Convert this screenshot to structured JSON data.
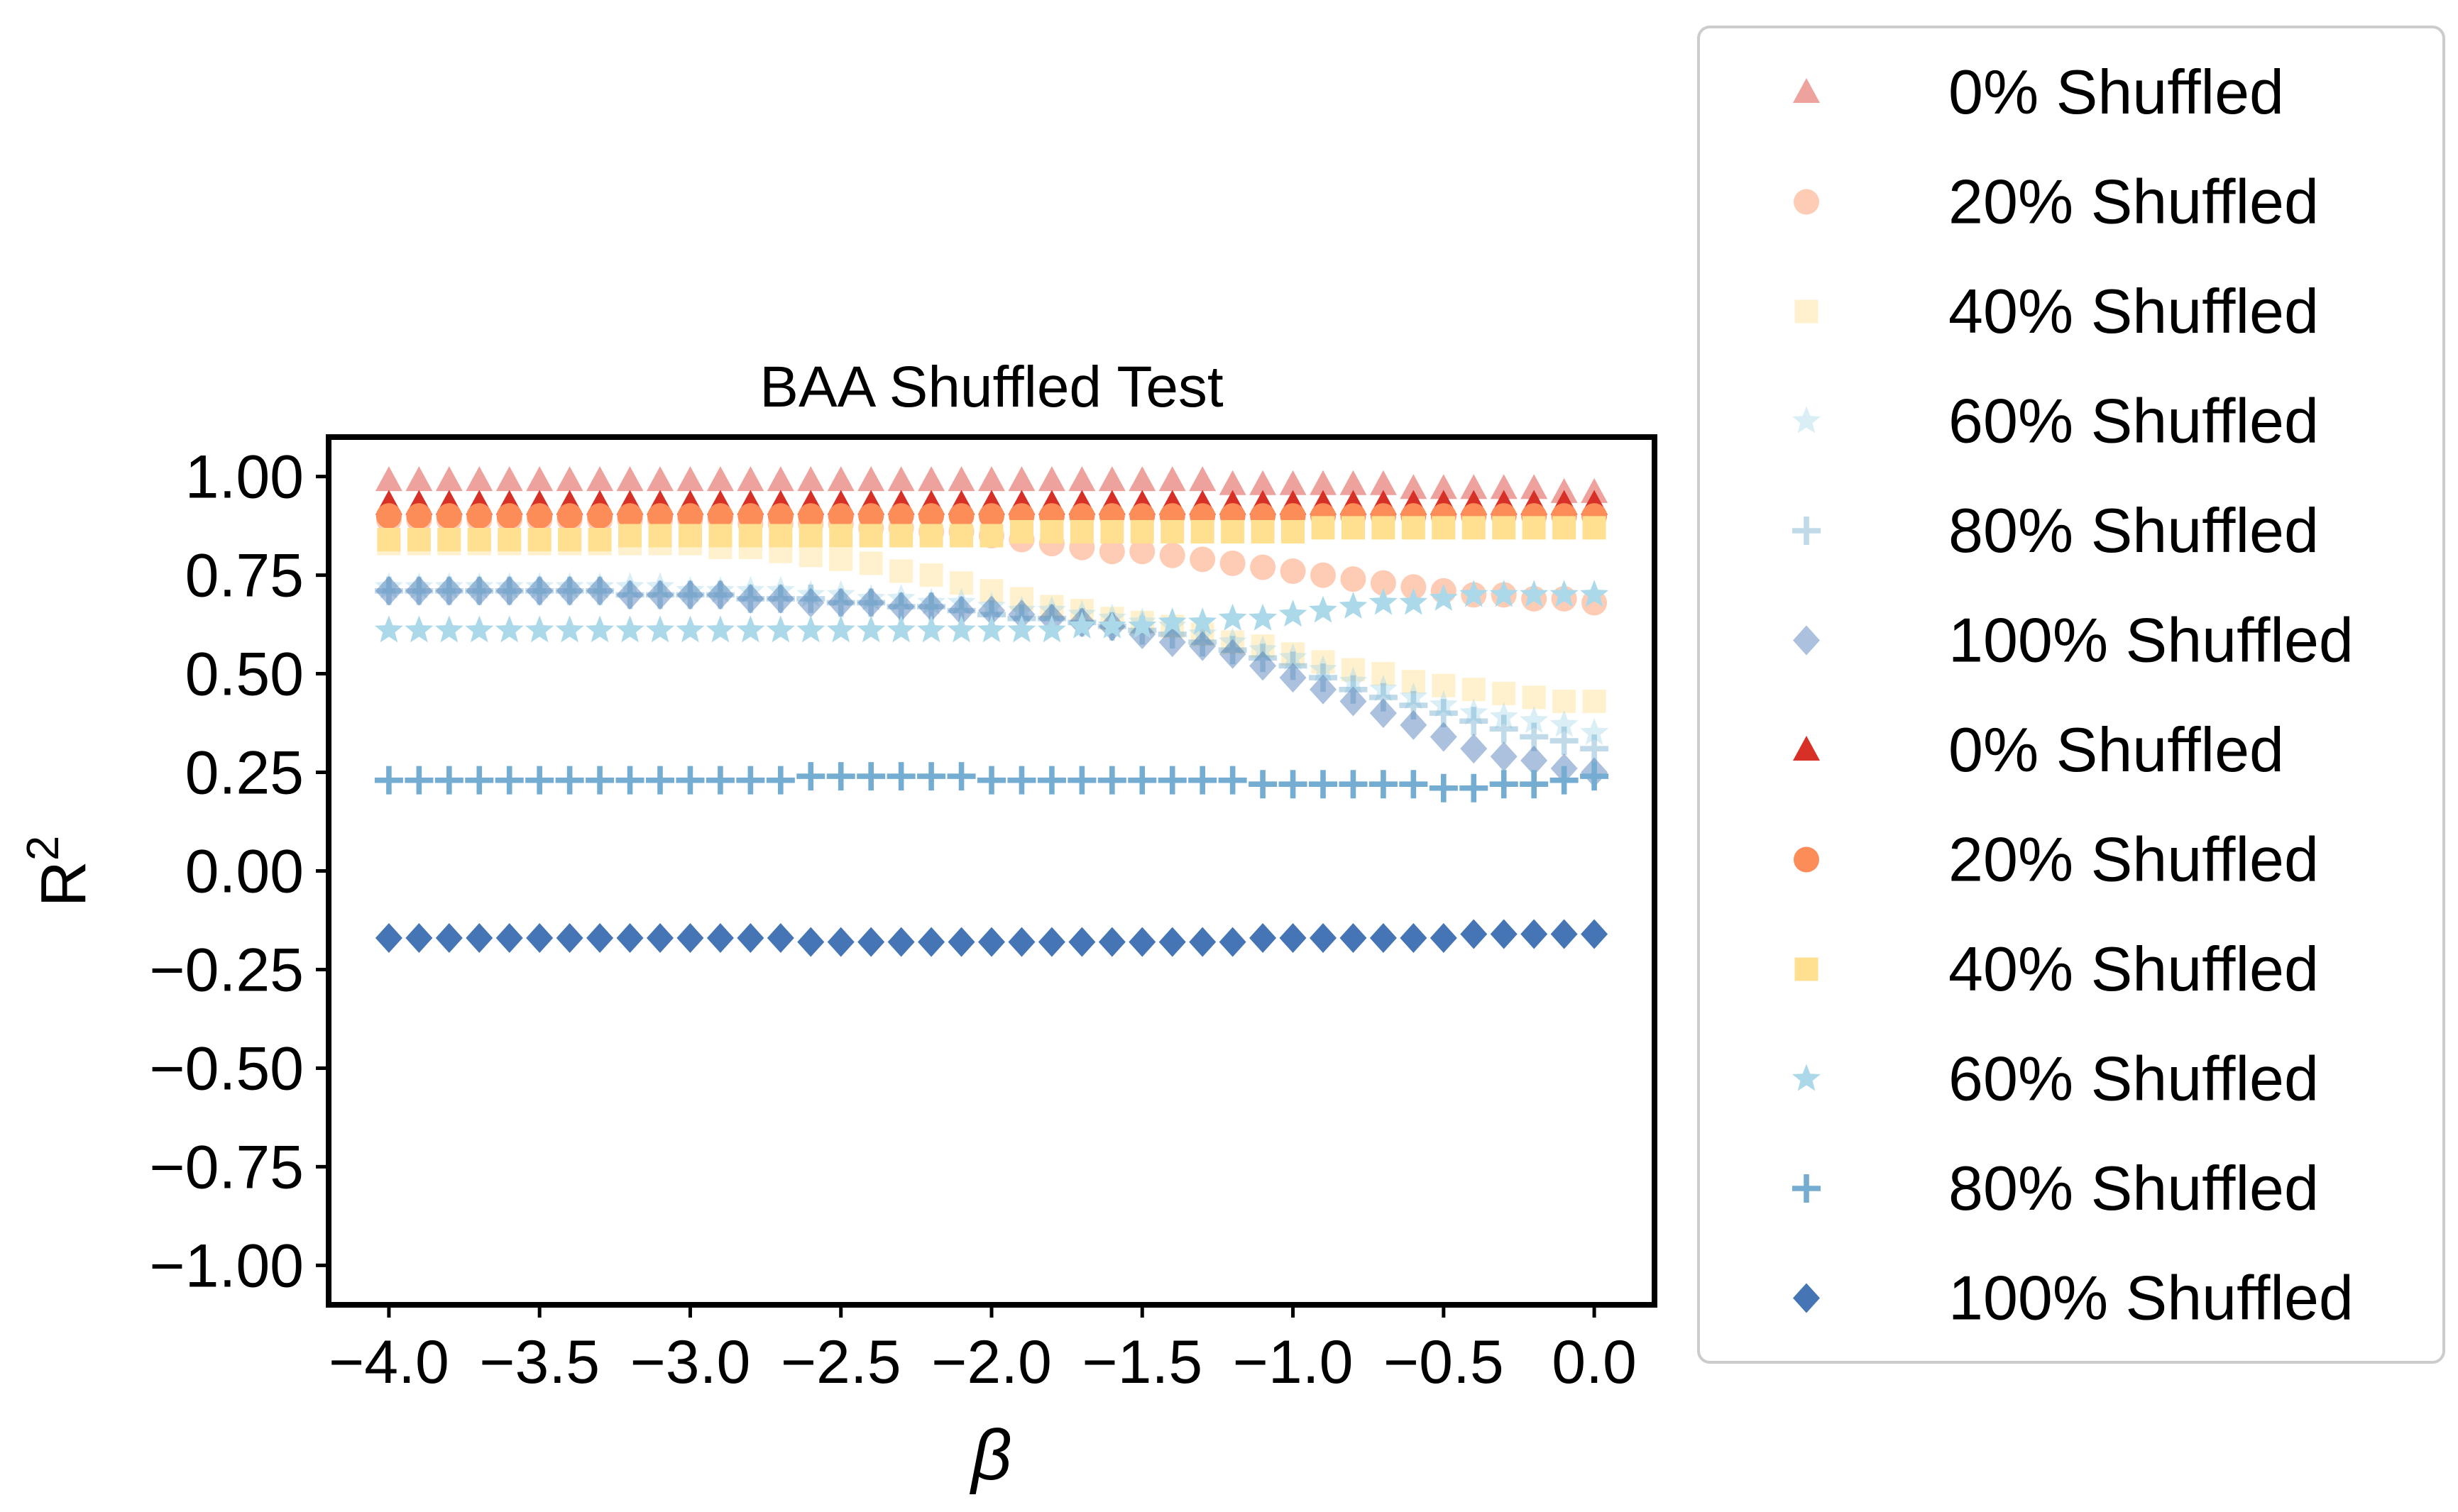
{
  "chart_data": {
    "type": "scatter",
    "title": "BAA Shuffled Test",
    "xlabel": "β",
    "ylabel_base": "R",
    "ylabel_sup": "2",
    "xlim": [
      -4.2,
      0.2
    ],
    "ylim": [
      -1.1,
      1.1
    ],
    "xticks": [
      -4.0,
      -3.5,
      -3.0,
      -2.5,
      -2.0,
      -1.5,
      -1.0,
      -0.5,
      0.0
    ],
    "xtick_labels": [
      "−4.0",
      "−3.5",
      "−3.0",
      "−2.5",
      "−2.0",
      "−1.5",
      "−1.0",
      "−0.5",
      "0.0"
    ],
    "yticks": [
      1.0,
      0.75,
      0.5,
      0.25,
      0.0,
      -0.25,
      -0.5,
      -0.75,
      -1.0
    ],
    "ytick_labels": [
      "1.00",
      "0.75",
      "0.50",
      "0.25",
      "0.00",
      "−0.25",
      "−0.50",
      "−0.75",
      "−1.00"
    ],
    "grid": false,
    "legend_position": "outside-right",
    "x": [
      -4.0,
      -3.9,
      -3.8,
      -3.7,
      -3.6,
      -3.5,
      -3.4,
      -3.3,
      -3.2,
      -3.1,
      -3.0,
      -2.9,
      -2.8,
      -2.7,
      -2.6,
      -2.5,
      -2.4,
      -2.3,
      -2.2,
      -2.1,
      -2.0,
      -1.9,
      -1.8,
      -1.7,
      -1.6,
      -1.5,
      -1.4,
      -1.3,
      -1.2,
      -1.1,
      -1.0,
      -0.9,
      -0.8,
      -0.7,
      -0.6,
      -0.5,
      -0.4,
      -0.3,
      -0.2,
      -0.1,
      0.0
    ],
    "series": [
      {
        "name": "0% Shuffled",
        "marker": "triangle",
        "color": "#d73027",
        "opacity": 0.45,
        "values": [
          0.99,
          0.99,
          0.99,
          0.99,
          0.99,
          0.99,
          0.99,
          0.99,
          0.99,
          0.99,
          0.99,
          0.99,
          0.99,
          0.99,
          0.99,
          0.99,
          0.99,
          0.99,
          0.99,
          0.99,
          0.99,
          0.99,
          0.99,
          0.99,
          0.99,
          0.99,
          0.99,
          0.99,
          0.98,
          0.98,
          0.98,
          0.98,
          0.98,
          0.98,
          0.97,
          0.97,
          0.97,
          0.97,
          0.97,
          0.96,
          0.96
        ]
      },
      {
        "name": "20% Shuffled",
        "marker": "circle",
        "color": "#fc8d59",
        "opacity": 0.45,
        "values": [
          0.89,
          0.89,
          0.89,
          0.89,
          0.89,
          0.89,
          0.89,
          0.89,
          0.89,
          0.89,
          0.89,
          0.89,
          0.88,
          0.88,
          0.88,
          0.88,
          0.87,
          0.87,
          0.86,
          0.86,
          0.85,
          0.84,
          0.83,
          0.82,
          0.81,
          0.81,
          0.8,
          0.79,
          0.78,
          0.77,
          0.76,
          0.75,
          0.74,
          0.73,
          0.72,
          0.71,
          0.7,
          0.7,
          0.69,
          0.69,
          0.68
        ]
      },
      {
        "name": "40% Shuffled",
        "marker": "square",
        "color": "#fee090",
        "opacity": 0.45,
        "values": [
          0.83,
          0.83,
          0.83,
          0.83,
          0.83,
          0.83,
          0.83,
          0.83,
          0.83,
          0.83,
          0.83,
          0.82,
          0.82,
          0.81,
          0.8,
          0.79,
          0.78,
          0.76,
          0.75,
          0.73,
          0.71,
          0.69,
          0.67,
          0.66,
          0.64,
          0.63,
          0.62,
          0.6,
          0.58,
          0.57,
          0.55,
          0.53,
          0.51,
          0.5,
          0.48,
          0.47,
          0.46,
          0.45,
          0.44,
          0.43,
          0.43
        ]
      },
      {
        "name": "60% Shuffled",
        "marker": "star",
        "color": "#abd9e9",
        "opacity": 0.45,
        "values": [
          0.72,
          0.72,
          0.72,
          0.72,
          0.72,
          0.72,
          0.72,
          0.72,
          0.72,
          0.72,
          0.71,
          0.71,
          0.71,
          0.71,
          0.7,
          0.7,
          0.69,
          0.69,
          0.68,
          0.68,
          0.67,
          0.66,
          0.66,
          0.65,
          0.64,
          0.63,
          0.62,
          0.6,
          0.58,
          0.56,
          0.54,
          0.51,
          0.48,
          0.46,
          0.44,
          0.42,
          0.4,
          0.39,
          0.38,
          0.37,
          0.35
        ]
      },
      {
        "name": "80% Shuffled",
        "marker": "plus",
        "color": "#74add1",
        "opacity": 0.45,
        "values": [
          0.71,
          0.71,
          0.71,
          0.71,
          0.71,
          0.71,
          0.71,
          0.71,
          0.7,
          0.7,
          0.7,
          0.7,
          0.69,
          0.69,
          0.69,
          0.68,
          0.68,
          0.67,
          0.67,
          0.66,
          0.65,
          0.64,
          0.64,
          0.63,
          0.62,
          0.61,
          0.6,
          0.58,
          0.56,
          0.54,
          0.52,
          0.49,
          0.46,
          0.44,
          0.42,
          0.4,
          0.38,
          0.36,
          0.34,
          0.33,
          0.31
        ]
      },
      {
        "name": "100% Shuffled",
        "marker": "diamond",
        "color": "#4575b4",
        "opacity": 0.45,
        "values": [
          0.71,
          0.71,
          0.71,
          0.71,
          0.71,
          0.71,
          0.71,
          0.71,
          0.7,
          0.7,
          0.7,
          0.7,
          0.69,
          0.69,
          0.68,
          0.68,
          0.68,
          0.67,
          0.67,
          0.66,
          0.66,
          0.65,
          0.64,
          0.63,
          0.62,
          0.6,
          0.58,
          0.57,
          0.55,
          0.52,
          0.49,
          0.46,
          0.43,
          0.4,
          0.37,
          0.34,
          0.31,
          0.29,
          0.28,
          0.26,
          0.25
        ]
      },
      {
        "name": "0% Shuffled",
        "marker": "triangle",
        "color": "#d73027",
        "opacity": 1.0,
        "values": [
          0.93,
          0.93,
          0.93,
          0.93,
          0.93,
          0.93,
          0.93,
          0.93,
          0.93,
          0.93,
          0.93,
          0.93,
          0.93,
          0.93,
          0.93,
          0.93,
          0.93,
          0.93,
          0.93,
          0.93,
          0.93,
          0.93,
          0.93,
          0.93,
          0.93,
          0.93,
          0.93,
          0.93,
          0.93,
          0.93,
          0.93,
          0.93,
          0.93,
          0.93,
          0.93,
          0.93,
          0.93,
          0.93,
          0.93,
          0.93,
          0.93
        ]
      },
      {
        "name": "20% Shuffled",
        "marker": "circle",
        "color": "#fc8d59",
        "opacity": 1.0,
        "values": [
          0.9,
          0.9,
          0.9,
          0.9,
          0.9,
          0.9,
          0.9,
          0.9,
          0.9,
          0.9,
          0.9,
          0.9,
          0.9,
          0.9,
          0.9,
          0.9,
          0.9,
          0.9,
          0.9,
          0.9,
          0.9,
          0.9,
          0.9,
          0.9,
          0.9,
          0.9,
          0.9,
          0.9,
          0.9,
          0.9,
          0.9,
          0.9,
          0.9,
          0.9,
          0.9,
          0.9,
          0.9,
          0.9,
          0.9,
          0.9,
          0.9
        ]
      },
      {
        "name": "40% Shuffled",
        "marker": "square",
        "color": "#fee090",
        "opacity": 1.0,
        "values": [
          0.84,
          0.84,
          0.84,
          0.84,
          0.84,
          0.84,
          0.84,
          0.84,
          0.85,
          0.85,
          0.85,
          0.85,
          0.85,
          0.85,
          0.85,
          0.85,
          0.85,
          0.85,
          0.85,
          0.85,
          0.85,
          0.86,
          0.86,
          0.86,
          0.86,
          0.86,
          0.86,
          0.86,
          0.86,
          0.86,
          0.86,
          0.87,
          0.87,
          0.87,
          0.87,
          0.87,
          0.87,
          0.87,
          0.87,
          0.87,
          0.87
        ]
      },
      {
        "name": "60% Shuffled",
        "marker": "star",
        "color": "#abd9e9",
        "opacity": 1.0,
        "values": [
          0.61,
          0.61,
          0.61,
          0.61,
          0.61,
          0.61,
          0.61,
          0.61,
          0.61,
          0.61,
          0.61,
          0.61,
          0.61,
          0.61,
          0.61,
          0.61,
          0.61,
          0.61,
          0.61,
          0.61,
          0.61,
          0.61,
          0.61,
          0.62,
          0.62,
          0.62,
          0.63,
          0.63,
          0.64,
          0.64,
          0.65,
          0.66,
          0.67,
          0.68,
          0.68,
          0.69,
          0.7,
          0.7,
          0.7,
          0.7,
          0.7
        ]
      },
      {
        "name": "80% Shuffled",
        "marker": "plus",
        "color": "#74add1",
        "opacity": 1.0,
        "values": [
          0.23,
          0.23,
          0.23,
          0.23,
          0.23,
          0.23,
          0.23,
          0.23,
          0.23,
          0.23,
          0.23,
          0.23,
          0.23,
          0.23,
          0.24,
          0.24,
          0.24,
          0.24,
          0.24,
          0.24,
          0.23,
          0.23,
          0.23,
          0.23,
          0.23,
          0.23,
          0.23,
          0.23,
          0.23,
          0.22,
          0.22,
          0.22,
          0.22,
          0.22,
          0.22,
          0.21,
          0.21,
          0.22,
          0.22,
          0.23,
          0.24
        ]
      },
      {
        "name": "100% Shuffled",
        "marker": "diamond",
        "color": "#4575b4",
        "opacity": 1.0,
        "values": [
          -0.17,
          -0.17,
          -0.17,
          -0.17,
          -0.17,
          -0.17,
          -0.17,
          -0.17,
          -0.17,
          -0.17,
          -0.17,
          -0.17,
          -0.17,
          -0.17,
          -0.18,
          -0.18,
          -0.18,
          -0.18,
          -0.18,
          -0.18,
          -0.18,
          -0.18,
          -0.18,
          -0.18,
          -0.18,
          -0.18,
          -0.18,
          -0.18,
          -0.18,
          -0.17,
          -0.17,
          -0.17,
          -0.17,
          -0.17,
          -0.17,
          -0.17,
          -0.16,
          -0.16,
          -0.16,
          -0.16,
          -0.16
        ]
      }
    ]
  }
}
